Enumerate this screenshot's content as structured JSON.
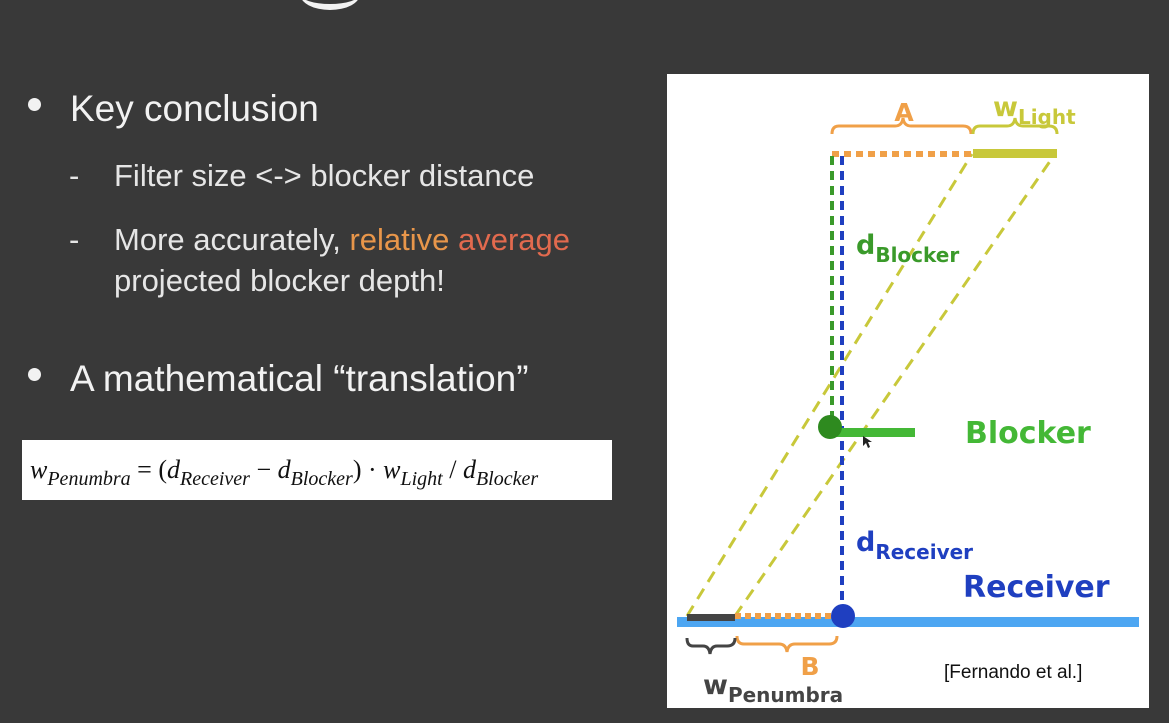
{
  "bullets": [
    {
      "text": "Key conclusion",
      "subs": [
        {
          "text": "Filter size <-> blocker distance"
        },
        {
          "prefix": "More accurately, ",
          "highlight1": "relative",
          "highlight2": " average",
          "line2": "projected blocker depth!"
        }
      ]
    },
    {
      "text": "A mathematical “translation”"
    }
  ],
  "formula": {
    "w": "w",
    "penumbra_sub": "Penumbra",
    "eq": " = (",
    "d": "d",
    "receiver_sub": "Receiver",
    "minus": " − ",
    "blocker_sub": "Blocker",
    "close_dot": ") · ",
    "light_sub": "Light",
    "slash": " / "
  },
  "diagram": {
    "labels": {
      "A": "A",
      "B": "B",
      "w": "w",
      "light": "Light",
      "d": "d",
      "blocker_sub": "Blocker",
      "receiver_sub": "Receiver",
      "penumbra": "Penumbra",
      "blocker": "Blocker",
      "receiver": "Receiver"
    },
    "colors": {
      "orange": "#f0a048",
      "light_yellow": "#c8c83a",
      "green": "#3a9a2a",
      "blocker_green": "#44b836",
      "navy": "#1f3fc0",
      "receiver_blue": "#4da6f2",
      "dark_gray": "#444444"
    }
  },
  "citation": "[Fernando et al.]"
}
